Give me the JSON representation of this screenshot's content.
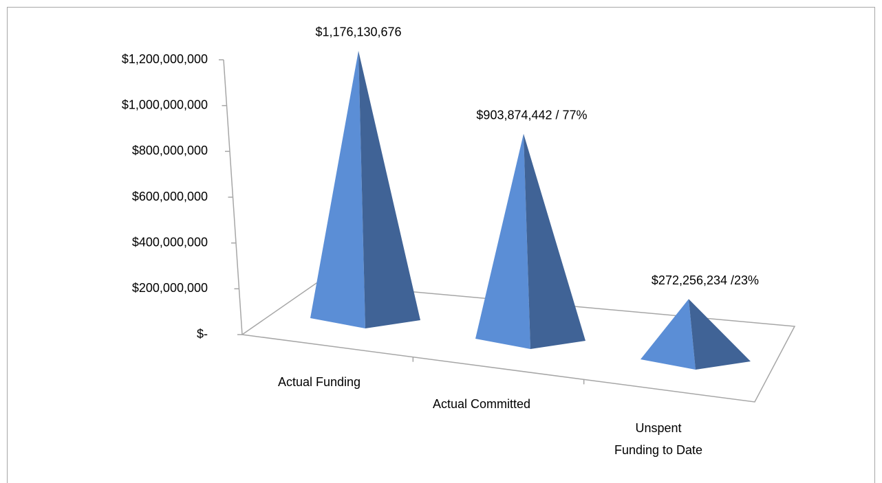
{
  "chart_data": {
    "type": "pyramid",
    "categories": [
      "Actual Funding",
      "Actual Committed",
      "Unspent Funding to Date"
    ],
    "values": [
      1176130676,
      903874442,
      272256234
    ],
    "value_labels": [
      "$1,176,130,676",
      "$903,874,442 / 77%",
      "$272,256,234 /23%"
    ],
    "color": "#5b8ed6",
    "ylim": [
      0,
      1200000000
    ],
    "yticks": [
      {
        "value": 0,
        "label": "$-"
      },
      {
        "value": 200000000,
        "label": "$200,000,000"
      },
      {
        "value": 400000000,
        "label": "$400,000,000"
      },
      {
        "value": 600000000,
        "label": "$600,000,000"
      },
      {
        "value": 800000000,
        "label": "$800,000,000"
      },
      {
        "value": 1000000000,
        "label": "$1,000,000,000"
      },
      {
        "value": 1200000000,
        "label": "$1,200,000,000"
      }
    ]
  }
}
